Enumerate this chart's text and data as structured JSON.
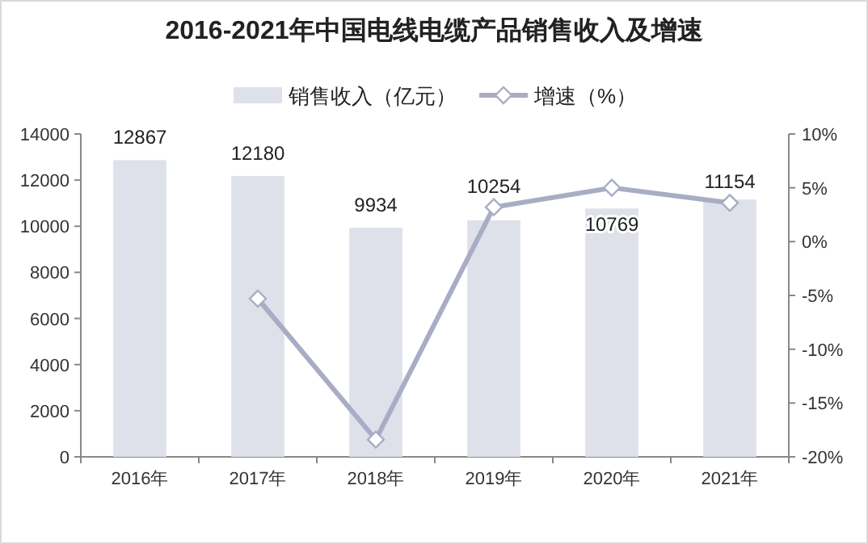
{
  "chart_data": {
    "type": "bar",
    "title": "2016-2021年中国电线电缆产品销售收入及增速",
    "categories": [
      "2016年",
      "2017年",
      "2018年",
      "2019年",
      "2020年",
      "2021年"
    ],
    "series": [
      {
        "name": "销售收入（亿元）",
        "color": "#dfe1ea",
        "values": [
          12867,
          12180,
          9934,
          10254,
          10769,
          11154
        ],
        "value_labels": [
          "12867",
          "12180",
          "9934",
          "10254",
          "10769",
          "11154"
        ]
      },
      {
        "name": "增速（%）",
        "type": "line",
        "axis": "y2",
        "color": "#a9adc4",
        "marker": "diamond",
        "values": [
          null,
          -5.3,
          -18.4,
          3.2,
          5.0,
          3.6
        ]
      }
    ],
    "ylim": [
      0,
      14000
    ],
    "yticks": [
      0,
      2000,
      4000,
      6000,
      8000,
      10000,
      12000,
      14000
    ],
    "y2lim": [
      -20,
      10
    ],
    "y2ticks": [
      {
        "value": -20,
        "label": "-20%"
      },
      {
        "value": -15,
        "label": "-15%"
      },
      {
        "value": -10,
        "label": "-10%"
      },
      {
        "value": -5,
        "label": "-5%"
      },
      {
        "value": 0,
        "label": "0%"
      },
      {
        "value": 5,
        "label": "5%"
      },
      {
        "value": 10,
        "label": "10%"
      }
    ],
    "legend": "top",
    "grid": false
  }
}
